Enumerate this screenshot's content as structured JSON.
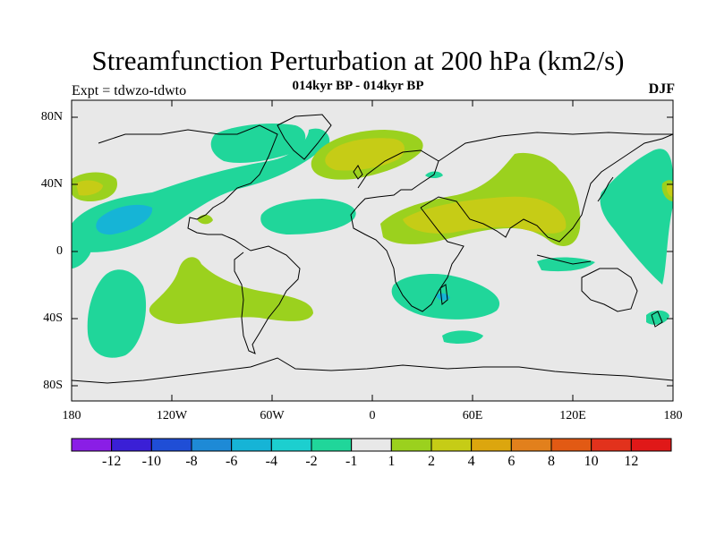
{
  "title": "Streamfunction Perturbation at 200 hPa (km2/s)",
  "subtitle": "014kyr BP - 014kyr BP",
  "experiment": "Expt = tdwzo-tdwto",
  "season": "DJF",
  "lat_labels": [
    "80N",
    "40N",
    "0",
    "40S",
    "80S"
  ],
  "lon_labels": [
    "180",
    "120W",
    "60W",
    "0",
    "60E",
    "120E",
    "180"
  ],
  "colorbar": {
    "labels": [
      "-12",
      "-10",
      "-8",
      "-6",
      "-4",
      "-2",
      "-1",
      "1",
      "2",
      "4",
      "6",
      "8",
      "10",
      "12"
    ],
    "colors": [
      "#8a1ee6",
      "#3a1fd6",
      "#1f4ed6",
      "#1e8ad6",
      "#16b4d6",
      "#1ccfcf",
      "#20d69a",
      "#e8e8e8",
      "#9bd11e",
      "#c6cc16",
      "#dca60e",
      "#e2801c",
      "#e25a14",
      "#e2321c",
      "#e01818"
    ]
  },
  "map_colors": {
    "land_bg": "#e8e8e8",
    "neg1": "#20d69a",
    "neg2": "#16b4d6",
    "neg3": "#1ccfcf",
    "pos1": "#9bd11e",
    "pos2": "#c6cc16",
    "pos3": "#dca60e"
  }
}
